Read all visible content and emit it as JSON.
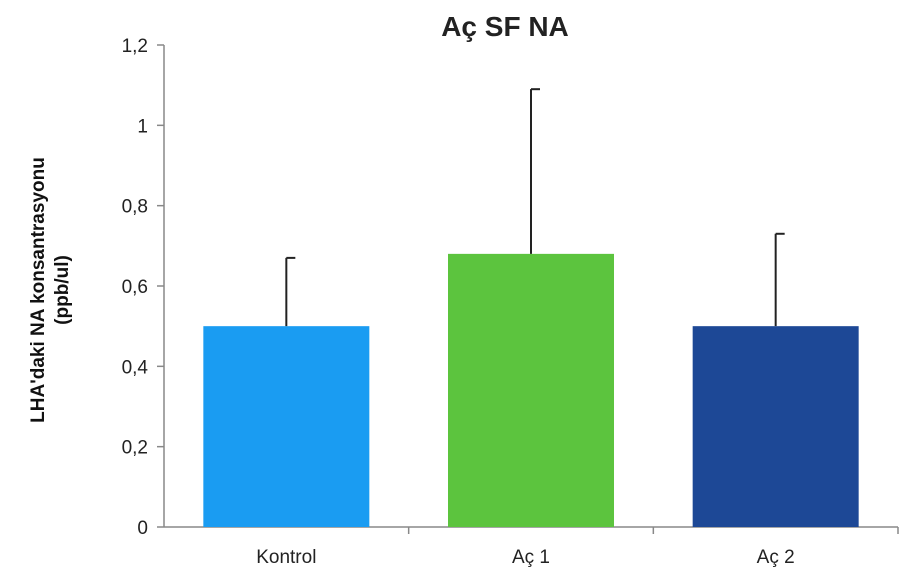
{
  "chart_data": {
    "type": "bar",
    "title": "Aç SF NA",
    "xlabel": "",
    "ylabel_lines": [
      "LHA'daki NA konsantrasyonu",
      "(ppb/ul)"
    ],
    "categories": [
      "Kontrol",
      "Aç 1",
      "Aç 2"
    ],
    "values": [
      0.5,
      0.68,
      0.5
    ],
    "error_upper": [
      0.67,
      1.09,
      0.73
    ],
    "colors": [
      "#1a9cf2",
      "#5cc43e",
      "#1d4896"
    ],
    "ylim": [
      0,
      1.2
    ],
    "yticks": [
      0,
      0.2,
      0.4,
      0.6,
      0.8,
      1,
      1.2
    ],
    "ytick_labels": [
      "0",
      "0,2",
      "0,4",
      "0,6",
      "0,8",
      "1",
      "1,2"
    ],
    "grid": false,
    "legend": "none"
  }
}
